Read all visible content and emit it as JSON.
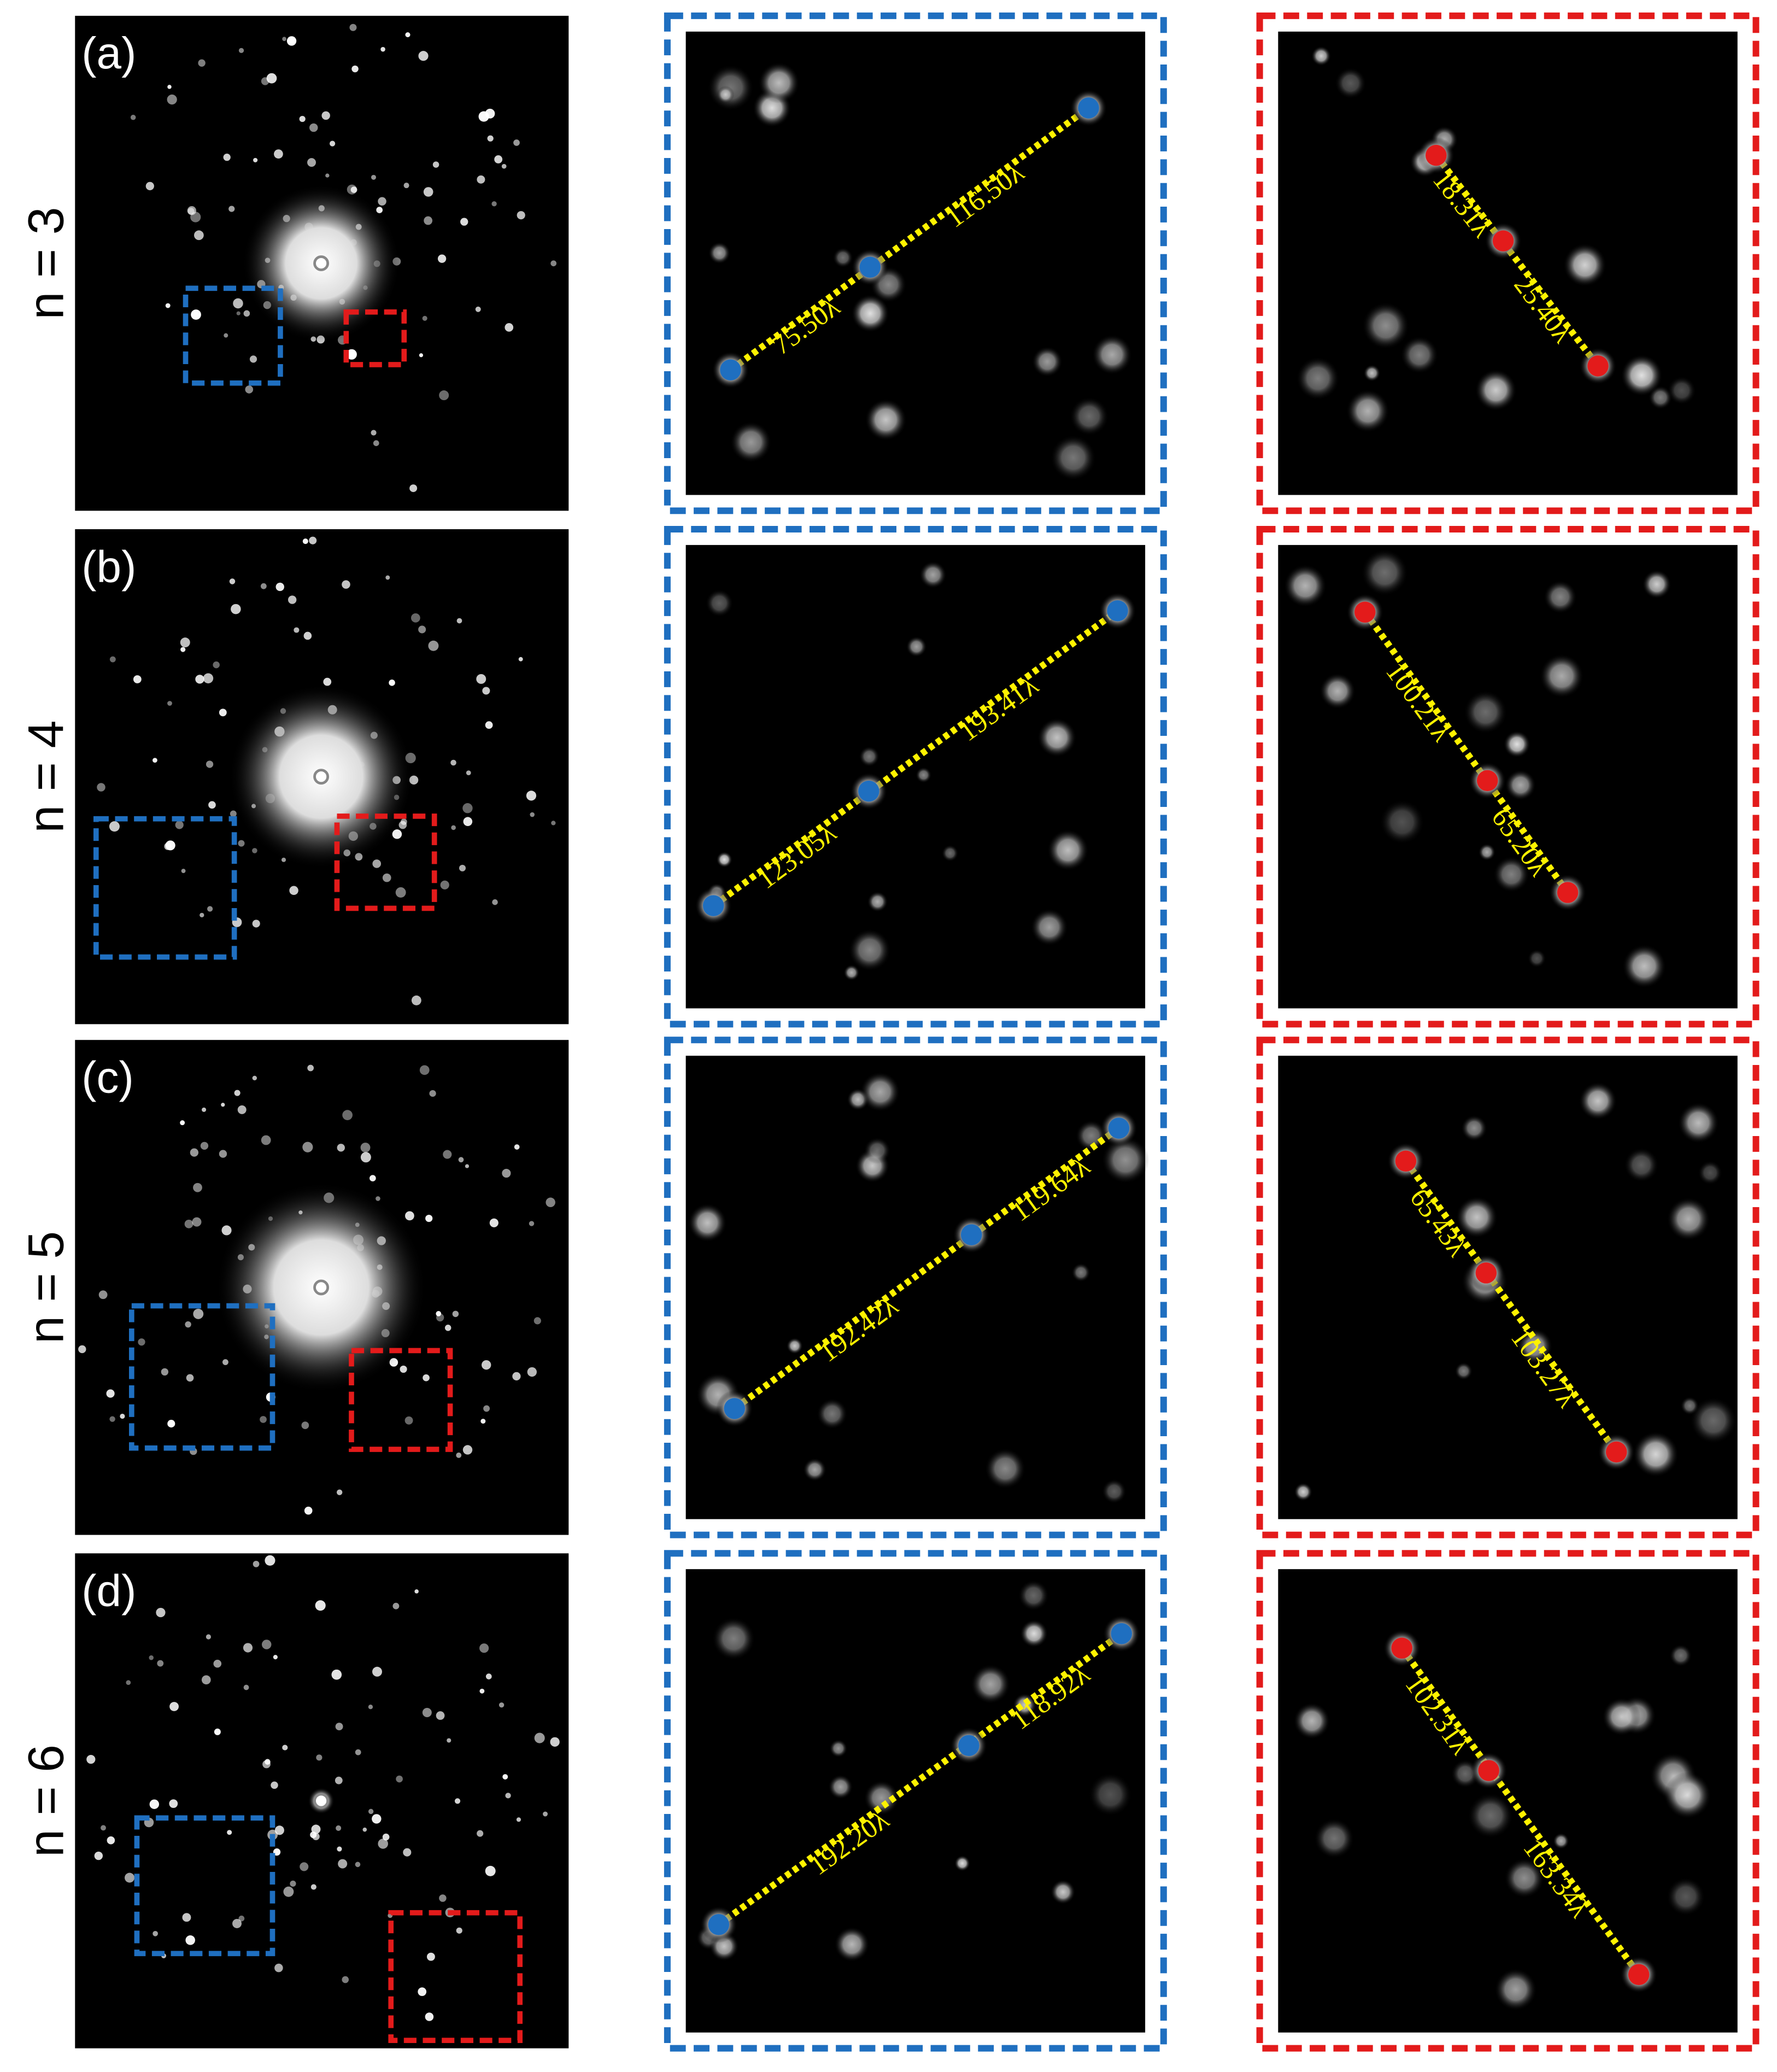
{
  "rows": [
    {
      "panel": "(a)",
      "n": "n = 3",
      "blue": [
        "75.50λ",
        "116.50λ"
      ],
      "red": [
        "18.31λ",
        "25.40λ"
      ]
    },
    {
      "panel": "(b)",
      "n": "n = 4",
      "blue": [
        "123.05λ",
        "193.41λ"
      ],
      "red": [
        "100.21λ",
        "65.20λ"
      ]
    },
    {
      "panel": "(c)",
      "n": "n = 5",
      "blue": [
        "192.42λ",
        "119.64λ"
      ],
      "red": [
        "65.43λ",
        "103.27λ"
      ]
    },
    {
      "panel": "(d)",
      "n": "n = 6",
      "blue": [
        "192.20λ",
        "118.92λ"
      ],
      "red": [
        "102.31λ",
        "163.34λ"
      ]
    }
  ]
}
